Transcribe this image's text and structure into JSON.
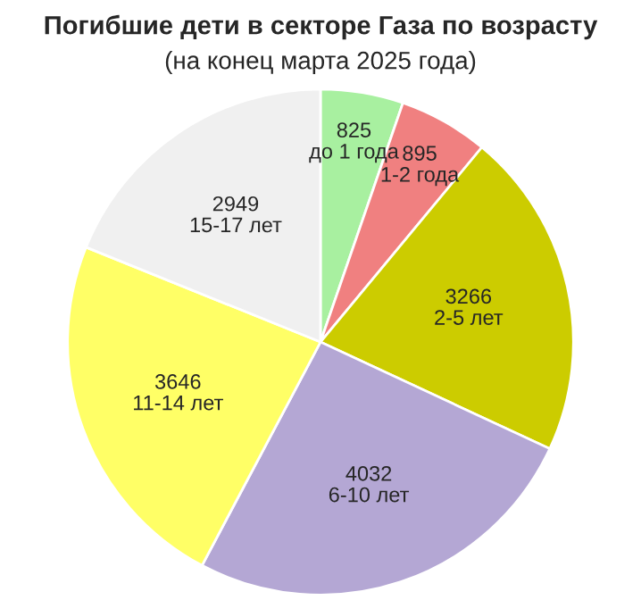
{
  "chart_data": {
    "type": "pie",
    "title": "Погибшие дети в секторе Газа по возрасту",
    "subtitle": "(на конец марта 2025 года)",
    "categories": [
      "до 1 года",
      "1-2 года",
      "2-5 лет",
      "6-10 лет",
      "11-14 лет",
      "15-17 лет"
    ],
    "values": [
      825,
      895,
      3266,
      4032,
      3646,
      2949
    ],
    "colors": [
      "#a8f0a0",
      "#f08080",
      "#cccc00",
      "#b4a7d4",
      "#ffff66",
      "#f0f0f0"
    ],
    "data_labels": true
  }
}
